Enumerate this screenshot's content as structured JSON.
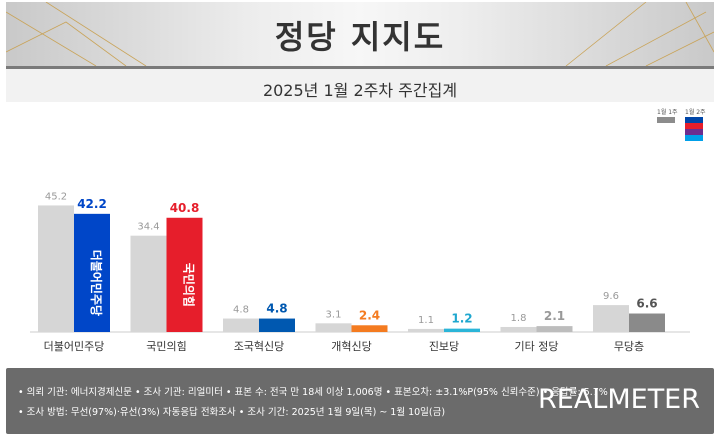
{
  "header": {
    "title": "정당 지지도",
    "subtitle": "2025년 1월 2주차 주간집계"
  },
  "legend": {
    "prev_label": "1월 1주",
    "curr_label": "1월 2주",
    "prev_color": "#8c8c8c",
    "curr_colors": [
      "#0046a8",
      "#e61e2b",
      "#6c2d8f",
      "#00a0e9"
    ]
  },
  "chart_data": {
    "type": "bar",
    "categories": [
      "더불어민주당",
      "국민의힘",
      "조국혁신당",
      "개혁신당",
      "진보당",
      "기타 정당",
      "무당층"
    ],
    "series": [
      {
        "name": "1월 1주",
        "values": [
          45.2,
          34.4,
          4.8,
          3.1,
          1.1,
          1.8,
          9.6
        ]
      },
      {
        "name": "1월 2주",
        "values": [
          42.2,
          40.8,
          4.8,
          2.4,
          1.2,
          2.1,
          6.6
        ]
      }
    ],
    "value_labels_prev": [
      "45.2",
      "34.4",
      "4.8",
      "3.1",
      "1.1",
      "1.8",
      "9.6"
    ],
    "value_labels_curr": [
      "42.2",
      "40.8",
      "4.8",
      "2.4",
      "1.2",
      "2.1",
      "6.6"
    ],
    "colors_prev": "#d6d6d6",
    "colors_curr": [
      "#0046c8",
      "#e61e2b",
      "#0058b0",
      "#f47b20",
      "#2bb5d8",
      "#bdbdbd",
      "#8a8a8a"
    ],
    "label_colors_curr": [
      "#0046c8",
      "#e61e2b",
      "#0058b0",
      "#f47b20",
      "#1ea7cf",
      "#999999",
      "#555555"
    ],
    "bar_logos": [
      "더불어민주당",
      "국민의힘"
    ],
    "ylim": [
      0,
      50
    ],
    "grid": false
  },
  "footer": {
    "line1": "• 의뢰 기관: 에너지경제신문  • 조사 기관: 리얼미터  • 표본 수: 전국 만 18세 이상 1,006명  • 표본오차: ±3.1%P(95% 신뢰수준)  • 응답률: 5.7%",
    "line2": "• 조사 방법: 무선(97%)·유선(3%) 자동응답 전화조사  • 조사 기간: 2025년 1월 9일(목) ~ 1월 10일(금)",
    "brand": "REALMETER"
  }
}
